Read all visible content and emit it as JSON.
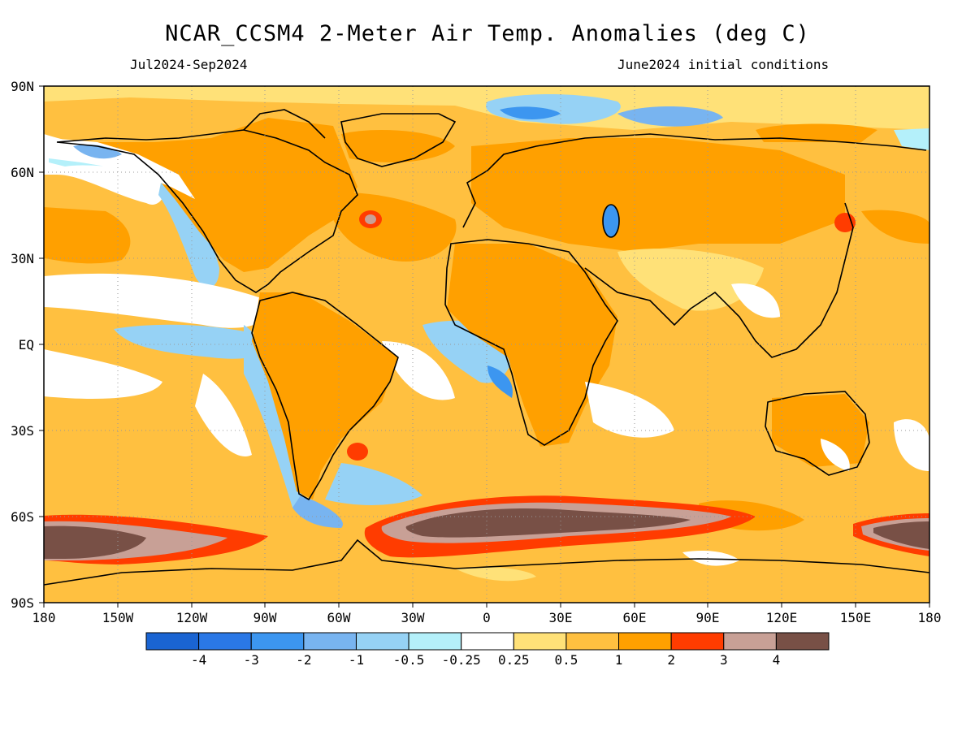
{
  "title": "NCAR_CCSM4 2-Meter Air Temp. Anomalies (deg C)",
  "subtitle_left": "Jul2024-Sep2024",
  "subtitle_right": "June2024 initial conditions",
  "map": {
    "projection": "equirectangular",
    "lon_range": [
      -180,
      180
    ],
    "lat_range": [
      -90,
      90
    ],
    "grid": "dotted",
    "lat_labels": [
      "90N",
      "60N",
      "30N",
      "EQ",
      "30S",
      "60S",
      "90S"
    ],
    "lon_labels": [
      "180",
      "150W",
      "120W",
      "90W",
      "60W",
      "30W",
      "0",
      "30E",
      "60E",
      "90E",
      "120E",
      "150E",
      "180"
    ]
  },
  "colorbar": {
    "labels": [
      "-4",
      "-3",
      "-2",
      "-1",
      "-0.5",
      "-0.25",
      "0.25",
      "0.5",
      "1",
      "2",
      "3",
      "4"
    ],
    "colors": [
      "#1a64d2",
      "#2a78e6",
      "#3c96f0",
      "#78b4f0",
      "#96d2f5",
      "#b4f0fa",
      "#ffffff",
      "#ffe178",
      "#ffc040",
      "#ffa000",
      "#ff3c00",
      "#c8a096",
      "#785046"
    ]
  },
  "palette": {
    "ocean_warm": "#ffc040",
    "land_warm": "#ffa000",
    "cool": "#96d2f5",
    "strong_cool": "#3c96f0",
    "neutral": "#ffffff",
    "hot": "#ff3c00",
    "very_hot": "#785046",
    "hot_outline": "#c8a096",
    "coast": "#000000"
  }
}
